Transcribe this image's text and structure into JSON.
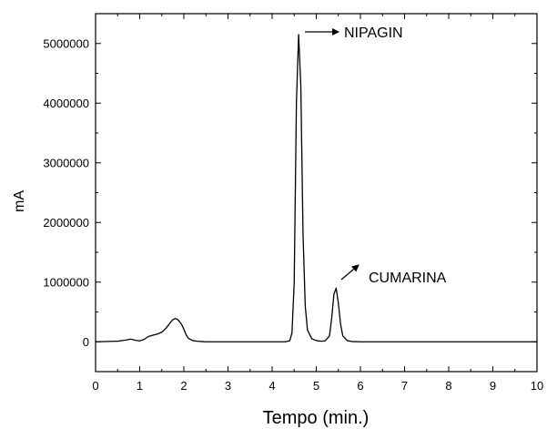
{
  "chart_data": {
    "type": "line",
    "title": "",
    "xlabel": "Tempo (min.)",
    "ylabel": "mA",
    "xlim": [
      0,
      10
    ],
    "ylim": [
      -500000,
      5500000
    ],
    "grid": false,
    "x_ticks": [
      0,
      1,
      2,
      3,
      4,
      5,
      6,
      7,
      8,
      9,
      10
    ],
    "x_tick_labels": [
      "0",
      "1",
      "2",
      "3",
      "4",
      "5",
      "6",
      "7",
      "8",
      "9",
      "10"
    ],
    "y_ticks": [
      0,
      1000000,
      2000000,
      3000000,
      4000000,
      5000000
    ],
    "y_tick_labels": [
      "0",
      "1000000",
      "2000000",
      "3000000",
      "4000000",
      "5000000"
    ],
    "series": [
      {
        "x": [
          0,
          0.5,
          0.7,
          0.8,
          0.9,
          1.0,
          1.1,
          1.2,
          1.3,
          1.4,
          1.5,
          1.6,
          1.7,
          1.75,
          1.8,
          1.85,
          1.9,
          1.95,
          2.0,
          2.05,
          2.1,
          2.2,
          2.3,
          2.4,
          2.5,
          3.0,
          3.5,
          4.0,
          4.3,
          4.4,
          4.45,
          4.5,
          4.55,
          4.6,
          4.65,
          4.7,
          4.75,
          4.8,
          4.9,
          5.0,
          5.1,
          5.2,
          5.3,
          5.35,
          5.4,
          5.45,
          5.5,
          5.55,
          5.6,
          5.7,
          5.8,
          6.0,
          7.0,
          8.0,
          9.0,
          10.0
        ],
        "y": [
          0,
          10000,
          30000,
          45000,
          25000,
          15000,
          40000,
          90000,
          110000,
          130000,
          160000,
          230000,
          330000,
          370000,
          390000,
          380000,
          340000,
          290000,
          210000,
          120000,
          60000,
          20000,
          10000,
          5000,
          0,
          0,
          0,
          0,
          0,
          20000,
          150000,
          1000000,
          4000000,
          5150000,
          4300000,
          1800000,
          600000,
          200000,
          50000,
          20000,
          10000,
          15000,
          100000,
          400000,
          800000,
          900000,
          650000,
          300000,
          100000,
          20000,
          5000,
          0,
          0,
          0,
          0,
          0
        ]
      }
    ],
    "annotations": [
      {
        "text": "NIPAGIN"
      },
      {
        "text": "CUMARINA"
      }
    ]
  }
}
